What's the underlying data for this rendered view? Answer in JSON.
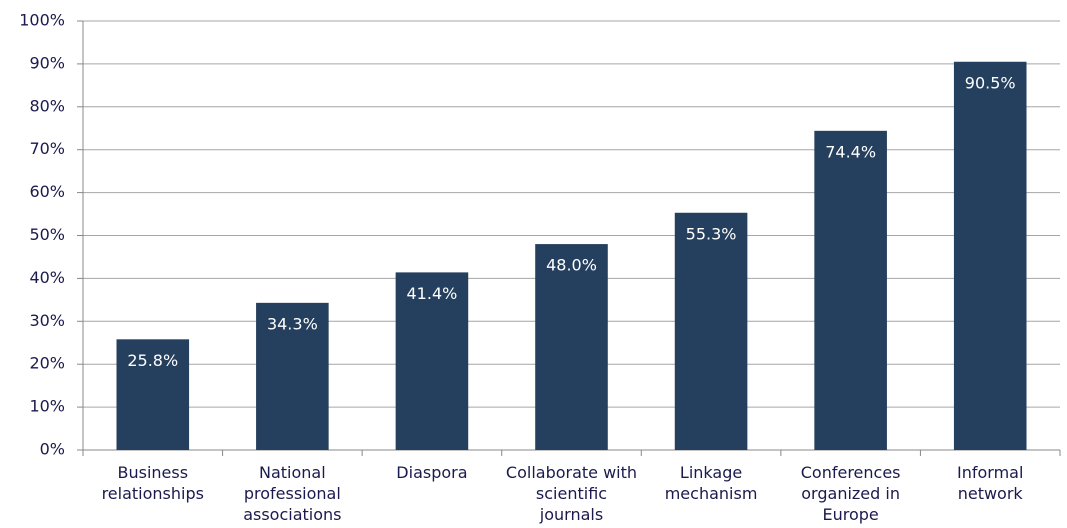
{
  "chart_data": {
    "type": "bar",
    "categories": [
      "Business relationships",
      "National professional associations",
      "Diaspora",
      "Collaborate with scientific journals",
      "Linkage mechanism",
      "Conferences organized in Europe",
      "Informal network"
    ],
    "values": [
      25.8,
      34.3,
      41.4,
      48.0,
      55.3,
      74.4,
      90.5
    ],
    "value_labels": [
      "25.8%",
      "34.3%",
      "41.4%",
      "48.0%",
      "55.3%",
      "74.4%",
      "90.5%"
    ],
    "color": "#253f5e",
    "ylim": [
      0,
      100
    ],
    "yticks": [
      {
        "value": 0,
        "label": "0%"
      },
      {
        "value": 10,
        "label": "10%"
      },
      {
        "value": 20,
        "label": "20%"
      },
      {
        "value": 30,
        "label": "30%"
      },
      {
        "value": 40,
        "label": "40%"
      },
      {
        "value": 50,
        "label": "50%"
      },
      {
        "value": 60,
        "label": "60%"
      },
      {
        "value": 70,
        "label": "70%"
      },
      {
        "value": 80,
        "label": "80%"
      },
      {
        "value": 90,
        "label": "90%"
      },
      {
        "value": 100,
        "label": "100%"
      }
    ],
    "grid": true
  }
}
